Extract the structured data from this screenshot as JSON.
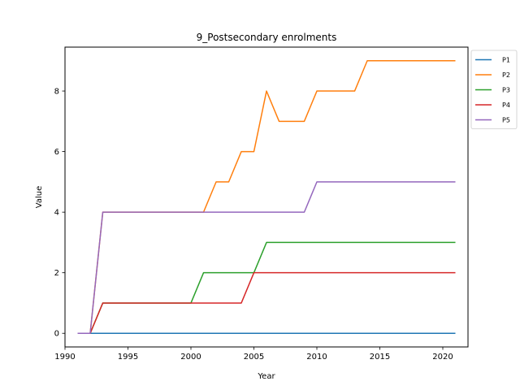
{
  "chart_data": {
    "type": "line",
    "title": "9_Postsecondary enrolments",
    "xlabel": "Year",
    "ylabel": "Value",
    "xlim": [
      1990,
      2022
    ],
    "ylim": [
      -0.45,
      9.45
    ],
    "x_ticks": [
      1990,
      1995,
      2000,
      2005,
      2010,
      2015,
      2020
    ],
    "y_ticks": [
      0,
      2,
      4,
      6,
      8
    ],
    "grid": false,
    "legend_position": "outside-top-right",
    "x": [
      1991,
      1992,
      1993,
      1994,
      1995,
      1996,
      1997,
      1998,
      1999,
      2000,
      2001,
      2002,
      2003,
      2004,
      2005,
      2006,
      2007,
      2008,
      2009,
      2010,
      2011,
      2012,
      2013,
      2014,
      2015,
      2016,
      2017,
      2018,
      2019,
      2020,
      2021
    ],
    "series": [
      {
        "name": "P1",
        "color": "#1f77b4",
        "values": [
          0,
          0,
          0,
          0,
          0,
          0,
          0,
          0,
          0,
          0,
          0,
          0,
          0,
          0,
          0,
          0,
          0,
          0,
          0,
          0,
          0,
          0,
          0,
          0,
          0,
          0,
          0,
          0,
          0,
          0,
          0
        ]
      },
      {
        "name": "P2",
        "color": "#ff7f0e",
        "values": [
          0,
          0,
          4,
          4,
          4,
          4,
          4,
          4,
          4,
          4,
          4,
          5,
          5,
          6,
          6,
          8,
          7,
          7,
          7,
          8,
          8,
          8,
          8,
          9,
          9,
          9,
          9,
          9,
          9,
          9,
          9
        ]
      },
      {
        "name": "P3",
        "color": "#2ca02c",
        "values": [
          0,
          0,
          1,
          1,
          1,
          1,
          1,
          1,
          1,
          1,
          2,
          2,
          2,
          2,
          2,
          3,
          3,
          3,
          3,
          3,
          3,
          3,
          3,
          3,
          3,
          3,
          3,
          3,
          3,
          3,
          3
        ]
      },
      {
        "name": "P4",
        "color": "#d62728",
        "values": [
          0,
          0,
          1,
          1,
          1,
          1,
          1,
          1,
          1,
          1,
          1,
          1,
          1,
          1,
          2,
          2,
          2,
          2,
          2,
          2,
          2,
          2,
          2,
          2,
          2,
          2,
          2,
          2,
          2,
          2,
          2
        ]
      },
      {
        "name": "P5",
        "color": "#9467bd",
        "values": [
          0,
          0,
          4,
          4,
          4,
          4,
          4,
          4,
          4,
          4,
          4,
          4,
          4,
          4,
          4,
          4,
          4,
          4,
          4,
          5,
          5,
          5,
          5,
          5,
          5,
          5,
          5,
          5,
          5,
          5,
          5
        ]
      }
    ]
  }
}
